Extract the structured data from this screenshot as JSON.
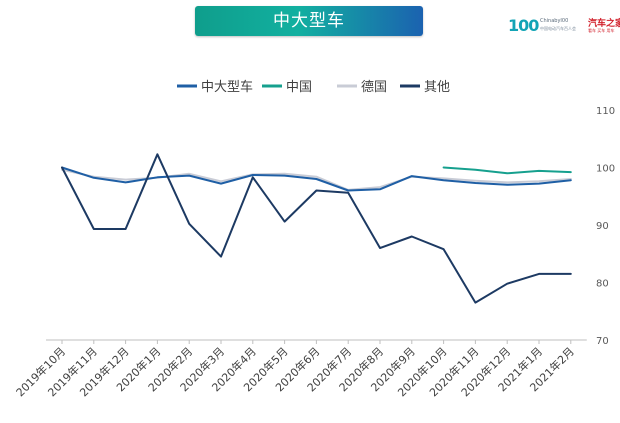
{
  "header": {
    "title": "中大型车"
  },
  "logo": {
    "mark": "100",
    "sub": "ChinabyI00",
    "sub2": "中国电动汽车百人会",
    "brand": "汽车之家",
    "brand_sub": "看车 买车 用车"
  },
  "chart_data": {
    "type": "line",
    "categories": [
      "2019年10月",
      "2019年11月",
      "2019年12月",
      "2020年1月",
      "2020年2月",
      "2020年3月",
      "2020年4月",
      "2020年5月",
      "2020年6月",
      "2020年7月",
      "2020年8月",
      "2020年9月",
      "2020年10月",
      "2020年11月",
      "2020年12月",
      "2021年1月",
      "2021年2月"
    ],
    "series": [
      {
        "name": "中大型车",
        "color": "#1f5fa5",
        "width": 2,
        "values": [
          100,
          98.2,
          97.4,
          98.3,
          98.6,
          97.2,
          98.7,
          98.6,
          98.0,
          96.0,
          96.2,
          98.5,
          97.8,
          97.3,
          97.0,
          97.2,
          97.8
        ]
      },
      {
        "name": "中国",
        "color": "#16a08e",
        "width": 2,
        "values": [
          null,
          null,
          null,
          null,
          null,
          null,
          null,
          null,
          null,
          null,
          null,
          null,
          100.0,
          99.6,
          99.0,
          99.4,
          99.2
        ]
      },
      {
        "name": "德国",
        "color": "#c9ccd6",
        "width": 2,
        "values": [
          99.6,
          98.4,
          97.9,
          98.2,
          98.9,
          97.6,
          98.8,
          98.9,
          98.4,
          96.1,
          96.6,
          98.4,
          98.1,
          97.7,
          97.4,
          97.6,
          98.0
        ]
      },
      {
        "name": "其他",
        "color": "#1d3a63",
        "width": 2,
        "values": [
          100,
          89.3,
          89.3,
          102.3,
          90.2,
          84.5,
          98.3,
          90.6,
          96.0,
          95.6,
          86.0,
          88.0,
          85.8,
          76.5,
          79.8,
          81.5,
          81.5
        ]
      }
    ],
    "ylim": [
      70,
      110
    ],
    "yticks": [
      "110",
      "100",
      "90",
      "80",
      "70"
    ],
    "legend_position": "top",
    "grid": false
  }
}
